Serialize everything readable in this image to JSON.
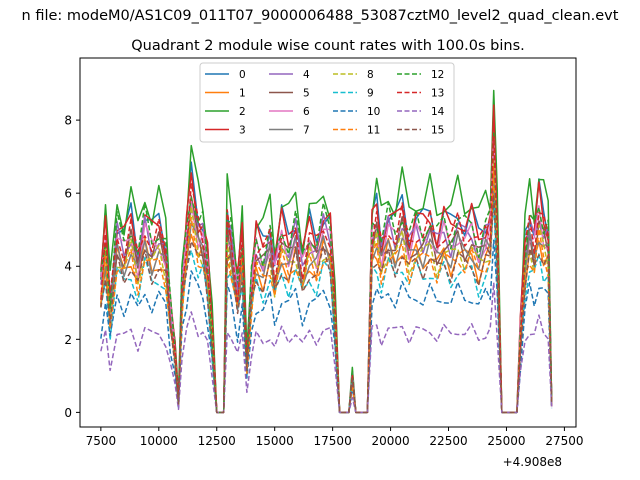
{
  "chart_data": {
    "type": "line",
    "suptitle": "n file: modeM0/AS1C09_011T07_9000006488_53087cztM0_level2_quad_clean.evt",
    "title": "Quadrant 2 module wise count rates with 100.0s bins.",
    "xlabel": "",
    "ylabel": "",
    "x_offset_label": "+4.908e8",
    "xlim": [
      6600,
      28000
    ],
    "ylim": [
      -0.4,
      9.7
    ],
    "x_ticks": [
      7500,
      10000,
      12500,
      15000,
      17500,
      20000,
      22500,
      25000,
      27500
    ],
    "x_tick_labels": [
      "7500",
      "10000",
      "12500",
      "15000",
      "17500",
      "20000",
      "22500",
      "25000",
      "27500"
    ],
    "y_ticks": [
      0,
      2,
      4,
      6,
      8
    ],
    "y_tick_labels": [
      "0",
      "2",
      "4",
      "6",
      "8"
    ],
    "grid": false,
    "legend_position": "top-center",
    "legend_ncols": 4,
    "base_x": [
      7500,
      7700,
      7900,
      8200,
      8500,
      8800,
      9100,
      9400,
      9700,
      10000,
      10300,
      10500,
      10700,
      10850,
      11000,
      11200,
      11400,
      11700,
      11900,
      12100,
      12300,
      12500,
      12650,
      12800,
      12950,
      13100,
      13400,
      13600,
      13800,
      14000,
      14200,
      14500,
      14800,
      15000,
      15300,
      15600,
      15900,
      16200,
      16500,
      16800,
      17100,
      17400,
      17600,
      17800,
      17900,
      18000,
      18200,
      18350,
      18500,
      18600,
      18800,
      19000,
      19200,
      19400,
      19600,
      19900,
      20200,
      20500,
      20800,
      21100,
      21400,
      21700,
      22000,
      22300,
      22600,
      22900,
      23200,
      23500,
      23800,
      24100,
      24300,
      24450,
      24600,
      24800,
      24950,
      25100,
      25300,
      25450,
      25600,
      25800,
      26000,
      26200,
      26400,
      26600,
      26800,
      26950
    ],
    "base_shape": [
      0.62,
      0.86,
      0.52,
      0.88,
      0.8,
      0.9,
      0.74,
      0.92,
      0.82,
      0.88,
      0.78,
      0.5,
      0.3,
      0.05,
      0.62,
      0.86,
      1.08,
      0.9,
      0.88,
      0.72,
      0.4,
      0.0,
      0.0,
      0.0,
      0.92,
      0.86,
      0.6,
      0.84,
      0.24,
      0.62,
      0.82,
      0.76,
      0.86,
      0.7,
      0.88,
      0.8,
      0.9,
      0.72,
      0.86,
      0.8,
      0.92,
      0.86,
      0.5,
      0.0,
      0.0,
      0.0,
      0.0,
      0.18,
      0.0,
      0.0,
      0.0,
      0.0,
      0.88,
      0.94,
      0.8,
      0.92,
      0.86,
      0.96,
      0.82,
      0.9,
      0.86,
      0.92,
      0.82,
      0.9,
      0.84,
      0.92,
      0.86,
      0.9,
      0.8,
      0.88,
      0.9,
      1.36,
      0.86,
      0.0,
      0.0,
      0.0,
      0.0,
      0.0,
      0.38,
      0.78,
      0.92,
      0.84,
      1.0,
      0.9,
      0.86,
      0.05
    ],
    "series": [
      {
        "name": "0",
        "color": "#1f77b4",
        "style": "solid",
        "level": 6.0
      },
      {
        "name": "1",
        "color": "#ff7f0e",
        "style": "solid",
        "level": 4.8
      },
      {
        "name": "2",
        "color": "#2ca02c",
        "style": "solid",
        "level": 6.6
      },
      {
        "name": "3",
        "color": "#d62728",
        "style": "solid",
        "level": 5.9
      },
      {
        "name": "4",
        "color": "#9467bd",
        "style": "solid",
        "level": 5.5
      },
      {
        "name": "5",
        "color": "#8c564b",
        "style": "solid",
        "level": 5.2
      },
      {
        "name": "6",
        "color": "#e377c2",
        "style": "solid",
        "level": 5.4
      },
      {
        "name": "7",
        "color": "#7f7f7f",
        "style": "solid",
        "level": 5.0
      },
      {
        "name": "8",
        "color": "#bcbd22",
        "style": "dashed",
        "level": 4.9
      },
      {
        "name": "9",
        "color": "#17becf",
        "style": "dashed",
        "level": 4.3
      },
      {
        "name": "10",
        "color": "#1f77b4",
        "style": "dashed",
        "level": 3.6
      },
      {
        "name": "11",
        "color": "#ff7f0e",
        "style": "dashed",
        "level": 4.7
      },
      {
        "name": "12",
        "color": "#2ca02c",
        "style": "dashed",
        "level": 5.8
      },
      {
        "name": "13",
        "color": "#d62728",
        "style": "dashed",
        "level": 5.6
      },
      {
        "name": "14",
        "color": "#9467bd",
        "style": "dashed",
        "level": 2.5
      },
      {
        "name": "15",
        "color": "#8c564b",
        "style": "dashed",
        "level": 4.6
      }
    ]
  }
}
